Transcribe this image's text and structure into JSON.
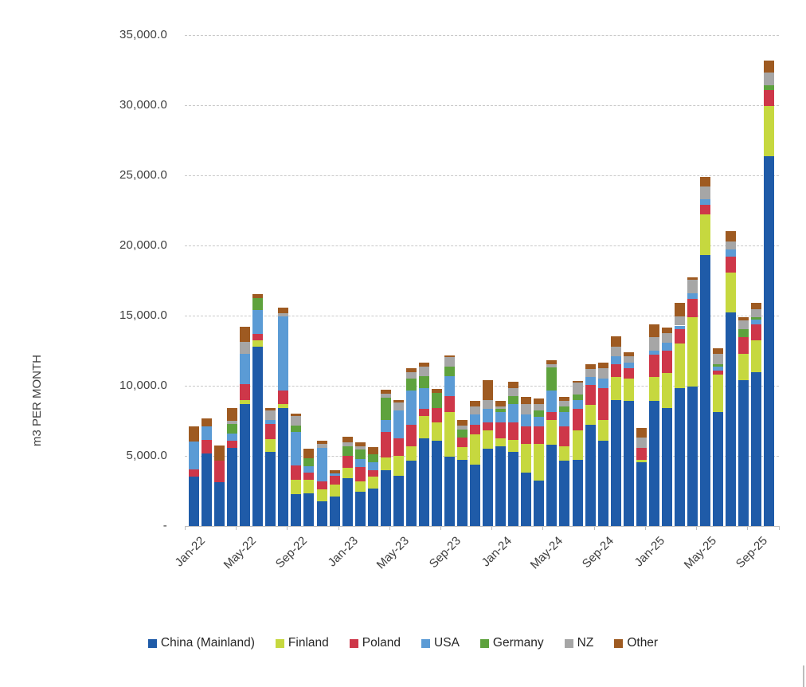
{
  "y_axis": {
    "title": "m3 PER MONTH",
    "tick_labels": [
      "35,000.0",
      "30,000.0",
      "25,000.0",
      "20,000.0",
      "15,000.0",
      "10,000.0",
      "5,000.0",
      "-"
    ],
    "tick_values": [
      35000,
      30000,
      25000,
      20000,
      15000,
      10000,
      5000,
      0
    ]
  },
  "x_axis": {
    "tick_labels": [
      "Jan-22",
      "May-22",
      "Sep-22",
      "Jan-23",
      "May-23",
      "Sep-23",
      "Jan-24",
      "May-24",
      "Sep-24",
      "Jan-25",
      "May-25",
      "Sep-25"
    ],
    "label_every_n_bars": 4
  },
  "legend": {
    "items": [
      {
        "label": "China (Mainland)",
        "color": "#1f5ba8"
      },
      {
        "label": "Finland",
        "color": "#c6d83f"
      },
      {
        "label": "Poland",
        "color": "#ce3749"
      },
      {
        "label": "USA",
        "color": "#5b9bd5"
      },
      {
        "label": "Germany",
        "color": "#5ea23d"
      },
      {
        "label": "NZ",
        "color": "#a6a6a6"
      },
      {
        "label": "Other",
        "color": "#9e5a21"
      }
    ]
  },
  "chart_data": {
    "type": "bar",
    "stacked": true,
    "title": "",
    "xlabel": "",
    "ylabel": "m3 PER MONTH",
    "ylim": [
      0,
      35000
    ],
    "grid": true,
    "legend_position": "bottom",
    "categories": [
      "Jan-22",
      "Feb-22",
      "Mar-22",
      "Apr-22",
      "May-22",
      "Jun-22",
      "Jul-22",
      "Aug-22",
      "Sep-22",
      "Oct-22",
      "Nov-22",
      "Dec-22",
      "Jan-23",
      "Feb-23",
      "Mar-23",
      "Apr-23",
      "May-23",
      "Jun-23",
      "Jul-23",
      "Aug-23",
      "Sep-23",
      "Oct-23",
      "Nov-23",
      "Dec-23",
      "Jan-24",
      "Feb-24",
      "Mar-24",
      "Apr-24",
      "May-24",
      "Jun-24",
      "Jul-24",
      "Aug-24",
      "Sep-24",
      "Oct-24",
      "Nov-24",
      "Dec-24",
      "Jan-25",
      "Feb-25",
      "Mar-25",
      "Apr-25",
      "May-25",
      "Jun-25",
      "Jul-25",
      "Aug-25",
      "Sep-25",
      "Oct-25"
    ],
    "series": [
      {
        "name": "China (Mainland)",
        "color": "#1f5ba8",
        "values": [
          3500,
          5150,
          3100,
          5590,
          8690,
          12780,
          5280,
          8400,
          2270,
          2350,
          1780,
          2090,
          3410,
          2440,
          2670,
          3960,
          3600,
          4640,
          6250,
          6060,
          4920,
          4700,
          4370,
          5490,
          5680,
          5300,
          3790,
          3220,
          5780,
          4640,
          4730,
          7200,
          6060,
          8990,
          8900,
          4540,
          8900,
          8400,
          9840,
          9940,
          19300,
          8140,
          15240,
          10410,
          10980,
          26350
        ]
      },
      {
        "name": "Finland",
        "color": "#c6d83f",
        "values": [
          0,
          0,
          0,
          0,
          280,
          450,
          910,
          280,
          1020,
          950,
          850,
          850,
          740,
          740,
          850,
          950,
          1420,
          1040,
          1610,
          1330,
          3210,
          940,
          2180,
          1330,
          570,
          850,
          2080,
          2650,
          1800,
          1040,
          2080,
          1420,
          1520,
          1610,
          1610,
          170,
          1700,
          2500,
          3170,
          4960,
          2940,
          2650,
          2840,
          1890,
          2270,
          3600
        ]
      },
      {
        "name": "Poland",
        "color": "#ce3749",
        "values": [
          550,
          1000,
          1550,
          470,
          1140,
          450,
          1080,
          970,
          1020,
          510,
          570,
          660,
          850,
          1020,
          470,
          1800,
          1230,
          1520,
          470,
          1040,
          1140,
          660,
          660,
          570,
          1140,
          1230,
          1230,
          1230,
          570,
          1420,
          1520,
          1420,
          2270,
          950,
          760,
          850,
          1610,
          1600,
          1000,
          1300,
          660,
          280,
          1140,
          1140,
          1140,
          1150
        ]
      },
      {
        "name": "USA",
        "color": "#5b9bd5",
        "values": [
          2000,
          950,
          0,
          510,
          2160,
          1700,
          280,
          5300,
          2390,
          470,
          2370,
          150,
          0,
          570,
          570,
          850,
          1990,
          2460,
          1520,
          0,
          1420,
          0,
          760,
          950,
          760,
          1330,
          850,
          660,
          1520,
          1040,
          660,
          570,
          660,
          570,
          380,
          0,
          280,
          570,
          280,
          400,
          380,
          280,
          470,
          0,
          340,
          0
        ]
      },
      {
        "name": "Germany",
        "color": "#5ea23d",
        "values": [
          0,
          0,
          0,
          720,
          0,
          850,
          0,
          0,
          450,
          570,
          0,
          0,
          680,
          680,
          570,
          1610,
          0,
          850,
          850,
          1040,
          680,
          570,
          0,
          0,
          190,
          550,
          0,
          470,
          1610,
          380,
          380,
          0,
          0,
          0,
          0,
          0,
          0,
          0,
          0,
          0,
          0,
          190,
          0,
          570,
          130,
          300
        ]
      },
      {
        "name": "NZ",
        "color": "#a6a6a6",
        "values": [
          0,
          0,
          0,
          190,
          850,
          0,
          680,
          230,
          680,
          0,
          280,
          0,
          280,
          230,
          0,
          280,
          570,
          440,
          660,
          0,
          680,
          300,
          570,
          660,
          190,
          570,
          760,
          470,
          280,
          380,
          850,
          570,
          760,
          660,
          470,
          760,
          950,
          660,
          660,
          950,
          950,
          760,
          570,
          660,
          570,
          950
        ]
      },
      {
        "name": "Other",
        "color": "#9e5a21",
        "values": [
          1050,
          550,
          1100,
          950,
          1080,
          280,
          170,
          400,
          190,
          680,
          230,
          200,
          400,
          280,
          470,
          280,
          190,
          320,
          280,
          280,
          100,
          380,
          380,
          1420,
          380,
          470,
          470,
          380,
          280,
          320,
          120,
          340,
          380,
          760,
          280,
          660,
          950,
          400,
          950,
          150,
          660,
          380,
          760,
          190,
          470,
          850
        ]
      }
    ]
  }
}
